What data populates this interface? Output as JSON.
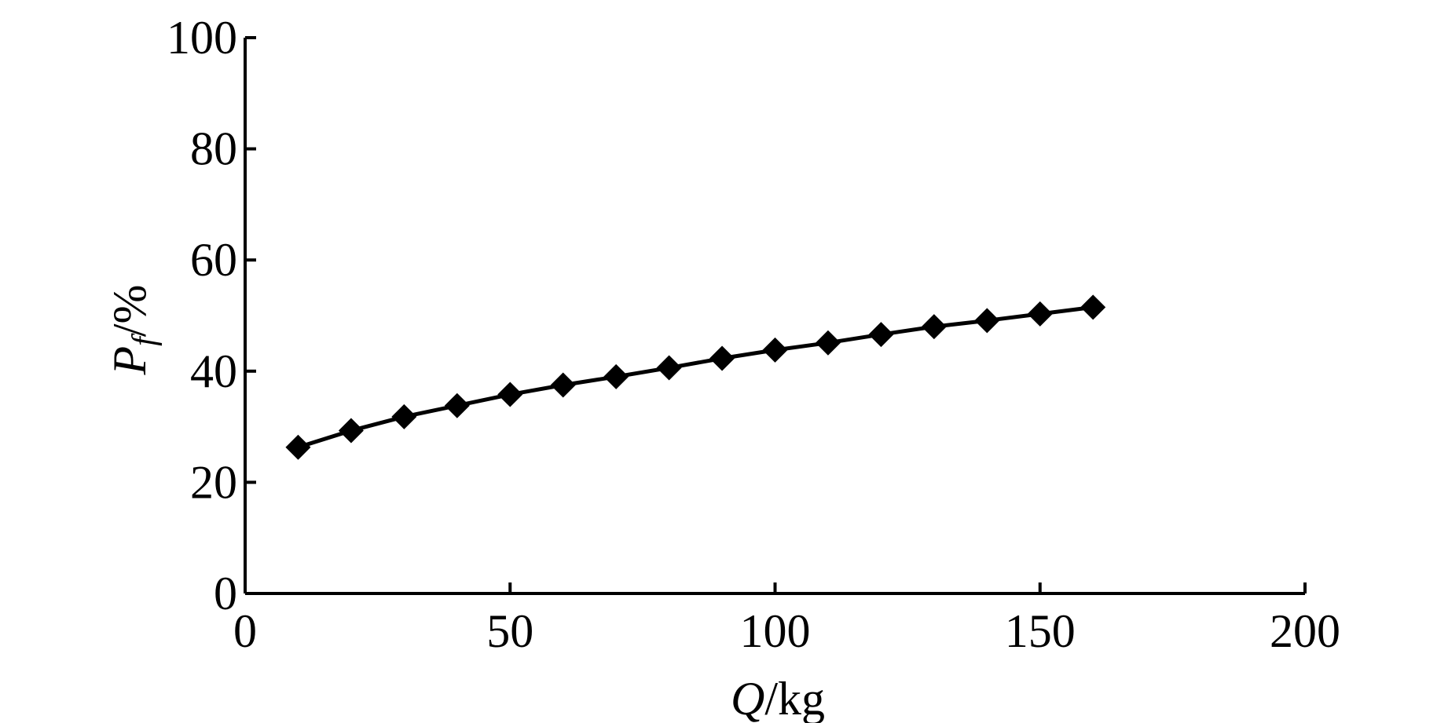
{
  "chart_data": {
    "type": "line",
    "title": "",
    "xlabel": {
      "symbol": "Q",
      "unit": "/kg"
    },
    "ylabel": {
      "symbol": "P",
      "subscript": "f",
      "unit": "/%"
    },
    "xlim": [
      0,
      200
    ],
    "ylim": [
      0,
      100
    ],
    "xticks": [
      0,
      50,
      100,
      150,
      200
    ],
    "yticks": [
      0,
      20,
      40,
      60,
      80,
      100
    ],
    "grid": false,
    "legend": "none",
    "marker": "diamond",
    "color": "#000000",
    "series": [
      {
        "x": [
          10,
          20,
          30,
          40,
          50,
          60,
          70,
          80,
          90,
          100,
          110,
          120,
          130,
          140,
          150,
          160
        ],
        "y": [
          26.3,
          29.3,
          31.8,
          33.8,
          35.8,
          37.5,
          39.0,
          40.6,
          42.3,
          43.8,
          45.1,
          46.6,
          48.0,
          49.1,
          50.3,
          51.5
        ]
      }
    ]
  }
}
